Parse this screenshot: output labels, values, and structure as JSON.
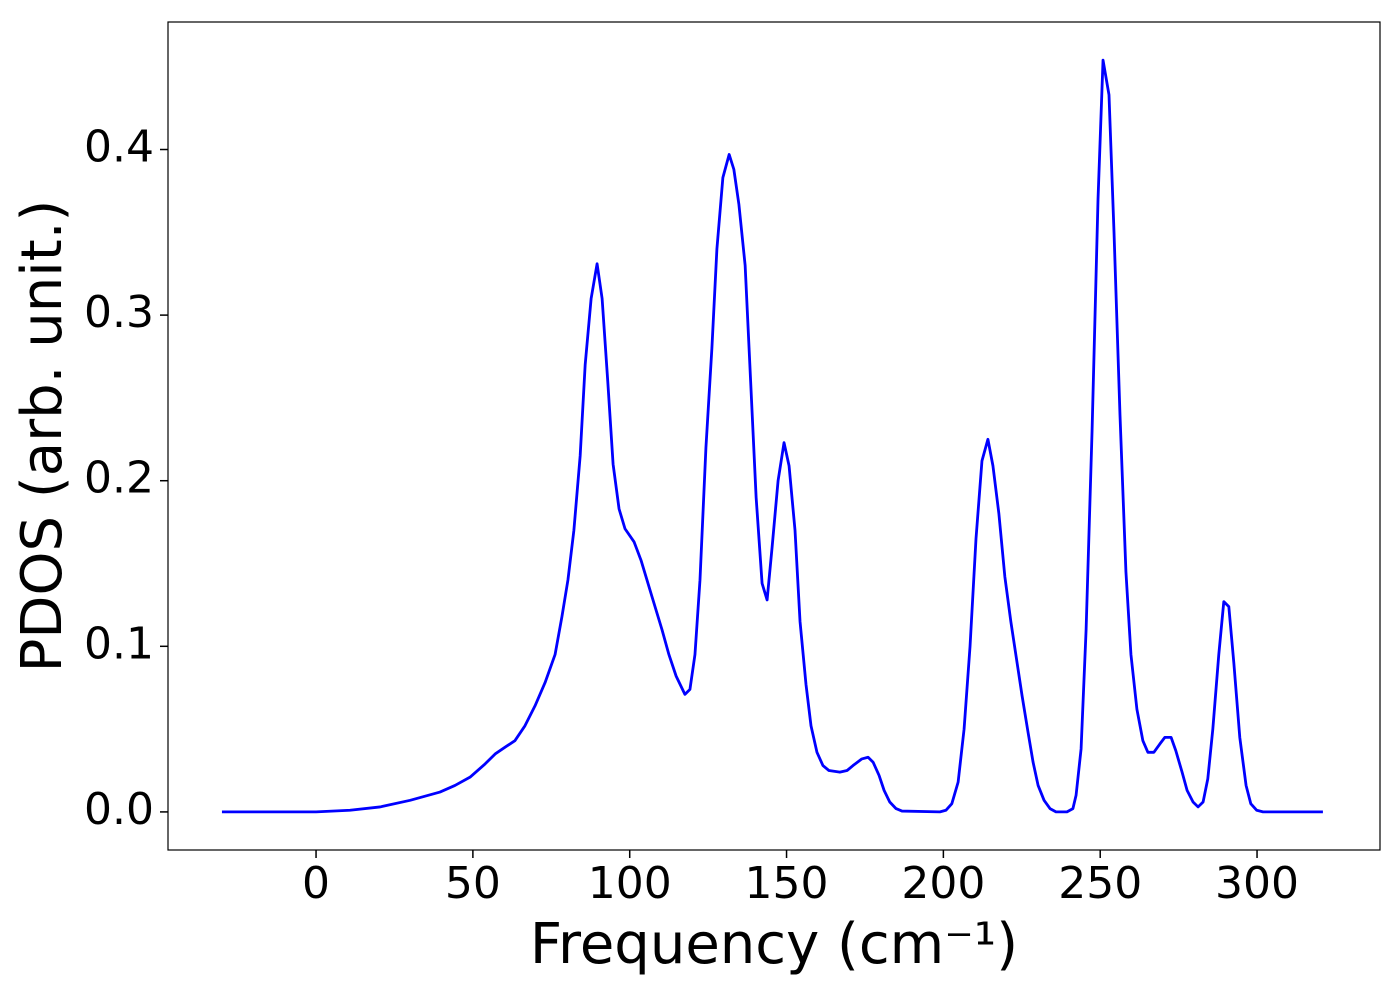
{
  "chart_data": {
    "type": "line",
    "xlabel": "Frequency (cm⁻¹)",
    "ylabel": "PDOS (arb. unit.)",
    "color": "#0000ff",
    "x": [
      -30,
      0,
      10.8,
      20.4,
      30,
      39.5,
      44.3,
      49.1,
      53.9,
      57.1,
      60.2,
      63.4,
      66.6,
      69.8,
      73,
      76.2,
      78.4,
      80.3,
      82.2,
      84.2,
      85.8,
      87.7,
      89.6,
      91.2,
      93,
      94.7,
      96.6,
      98.5,
      101.4,
      103.6,
      107.1,
      110.3,
      112.5,
      114.8,
      117.6,
      119.2,
      120.8,
      122.4,
      124.3,
      126.2,
      127.8,
      129.7,
      131.7,
      133.2,
      134.8,
      136.8,
      138.3,
      140.3,
      142.2,
      143.8,
      145.4,
      147.3,
      149.2,
      150.8,
      152.7,
      154.3,
      156.2,
      157.8,
      159.7,
      161.6,
      163.5,
      167,
      169.3,
      171.2,
      174,
      176,
      177.6,
      179.5,
      181.1,
      182.9,
      184.9,
      186.8,
      198.9,
      200.8,
      202.7,
      204.7,
      206.6,
      208.5,
      210.4,
      212.3,
      214.2,
      215.8,
      217.7,
      219.6,
      221.5,
      225.1,
      227,
      228.6,
      230.2,
      232.1,
      234,
      235.9,
      239.4,
      241.3,
      242.3,
      243.9,
      245.5,
      247.4,
      249.3,
      250.9,
      252.8,
      254.4,
      256.3,
      258.2,
      259.8,
      261.7,
      263.6,
      265.2,
      267.1,
      269,
      270.6,
      272.6,
      274.1,
      276.1,
      277.7,
      279.6,
      281.2,
      282.8,
      284.3,
      285.9,
      287.8,
      289.4,
      291,
      292.6,
      294.5,
      296.5,
      298,
      299.9,
      301.9,
      321
    ],
    "values": [
      0,
      0,
      0.001,
      0.003,
      0.007,
      0.012,
      0.016,
      0.021,
      0.029,
      0.035,
      0.039,
      0.043,
      0.052,
      0.064,
      0.078,
      0.095,
      0.118,
      0.14,
      0.17,
      0.215,
      0.27,
      0.31,
      0.331,
      0.31,
      0.26,
      0.21,
      0.183,
      0.171,
      0.163,
      0.152,
      0.13,
      0.11,
      0.095,
      0.082,
      0.071,
      0.074,
      0.095,
      0.14,
      0.22,
      0.28,
      0.34,
      0.383,
      0.397,
      0.388,
      0.367,
      0.33,
      0.27,
      0.19,
      0.138,
      0.128,
      0.16,
      0.2,
      0.223,
      0.209,
      0.17,
      0.115,
      0.077,
      0.052,
      0.036,
      0.028,
      0.025,
      0.024,
      0.025,
      0.028,
      0.032,
      0.033,
      0.03,
      0.022,
      0.013,
      0.006,
      0.002,
      0.0005,
      0,
      0.001,
      0.005,
      0.018,
      0.05,
      0.1,
      0.165,
      0.212,
      0.225,
      0.209,
      0.18,
      0.142,
      0.115,
      0.07,
      0.048,
      0.03,
      0.016,
      0.007,
      0.002,
      0,
      0,
      0.002,
      0.01,
      0.038,
      0.11,
      0.23,
      0.37,
      0.454,
      0.433,
      0.35,
      0.24,
      0.145,
      0.095,
      0.062,
      0.043,
      0.036,
      0.036,
      0.041,
      0.045,
      0.045,
      0.037,
      0.024,
      0.013,
      0.006,
      0.003,
      0.006,
      0.02,
      0.05,
      0.095,
      0.127,
      0.124,
      0.09,
      0.045,
      0.016,
      0.005,
      0.001,
      0,
      0
    ],
    "xlim": [
      -47.2,
      339.2
    ],
    "ylim": [
      -0.023,
      0.477
    ],
    "xticks": [
      0,
      50,
      100,
      150,
      200,
      250,
      300
    ],
    "yticks": [
      {
        "value": 0,
        "label": "0.0"
      },
      0.1,
      0.2,
      0.3,
      0.4
    ],
    "grid": false
  }
}
